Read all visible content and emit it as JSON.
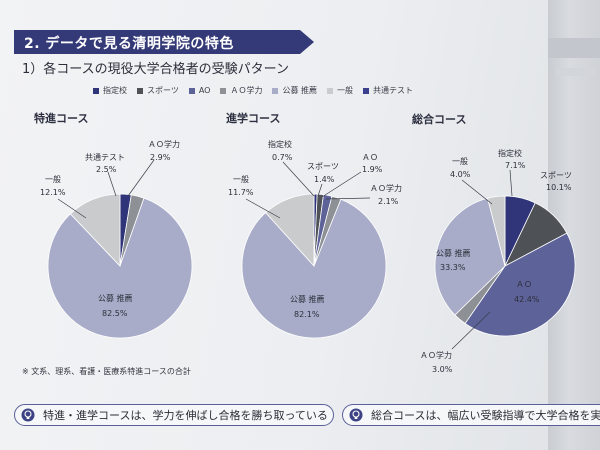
{
  "section": {
    "title": "2. データで見る清明学院の特色",
    "subtitle": "1）各コースの現役大学合格者の受験パターン"
  },
  "legend": [
    {
      "label": "指定校",
      "color": "#2f3578"
    },
    {
      "label": "スポーツ",
      "color": "#4e5257"
    },
    {
      "label": "AO",
      "color": "#5d6299"
    },
    {
      "label": "ＡＯ学力",
      "color": "#8d9196"
    },
    {
      "label": "公募 推薦",
      "color": "#a9acc8"
    },
    {
      "label": "一般",
      "color": "#c9cbcd"
    },
    {
      "label": "共通テスト",
      "color": "#3a3f8e"
    }
  ],
  "chart_data": [
    {
      "type": "pie",
      "title": "特進コース",
      "slices": [
        {
          "label": "共通テスト",
          "value": 2.5,
          "color": "#2f3578"
        },
        {
          "label": "ＡＯ学力",
          "value": 2.9,
          "color": "#8d9196"
        },
        {
          "label": "公募 推薦",
          "value": 82.5,
          "color": "#a9acc8"
        },
        {
          "label": "一般",
          "value": 12.1,
          "color": "#c9cbcd"
        }
      ],
      "display": [
        {
          "label": "ＡＯ学力",
          "value": "2.9%"
        },
        {
          "label": "共通テスト",
          "value": "2.5%"
        },
        {
          "label": "一般",
          "value": "12.1%"
        },
        {
          "label": "公募 推薦",
          "value": "82.5%"
        }
      ]
    },
    {
      "type": "pie",
      "title": "進学コース",
      "slices": [
        {
          "label": "指定校",
          "value": 0.7,
          "color": "#2f3578"
        },
        {
          "label": "スポーツ",
          "value": 1.4,
          "color": "#4e5257"
        },
        {
          "label": "AO",
          "value": 1.9,
          "color": "#5d6299"
        },
        {
          "label": "ＡＯ学力",
          "value": 2.1,
          "color": "#8d9196"
        },
        {
          "label": "公募 推薦",
          "value": 82.1,
          "color": "#a9acc8"
        },
        {
          "label": "一般",
          "value": 11.7,
          "color": "#c9cbcd"
        }
      ],
      "display": [
        {
          "label": "指定校",
          "value": "0.7%"
        },
        {
          "label": "スポーツ",
          "value": "1.4%"
        },
        {
          "label": "ＡＯ",
          "value": "1.9%"
        },
        {
          "label": "ＡＯ学力",
          "value": "2.1%"
        },
        {
          "label": "一般",
          "value": "11.7%"
        },
        {
          "label": "公募 推薦",
          "value": "82.1%"
        }
      ]
    },
    {
      "type": "pie",
      "title": "総合コース",
      "slices": [
        {
          "label": "指定校",
          "value": 7.1,
          "color": "#2f3578"
        },
        {
          "label": "スポーツ",
          "value": 10.1,
          "color": "#4e5257"
        },
        {
          "label": "AO",
          "value": 42.4,
          "color": "#5d6299"
        },
        {
          "label": "ＡＯ学力",
          "value": 3.0,
          "color": "#8d9196"
        },
        {
          "label": "公募 推薦",
          "value": 33.3,
          "color": "#a9acc8"
        },
        {
          "label": "一般",
          "value": 4.0,
          "color": "#c9cbcd"
        }
      ],
      "display": [
        {
          "label": "指定校",
          "value": "7.1%"
        },
        {
          "label": "スポーツ",
          "value": "10.1%"
        },
        {
          "label": "一般",
          "value": "4.0%"
        },
        {
          "label": "公募 推薦",
          "value": "33.3%"
        },
        {
          "label": "ＡＯ",
          "value": "42.4%"
        },
        {
          "label": "ＡＯ学力",
          "value": "3.0%"
        }
      ]
    }
  ],
  "footnote": "※ 文系、理系、看護・医療系特進コースの合計",
  "callouts": [
    "特進・進学コースは、学力を伸ばし合格を勝ち取っている",
    "総合コースは、幅広い受験指導で大学合格を実現"
  ]
}
